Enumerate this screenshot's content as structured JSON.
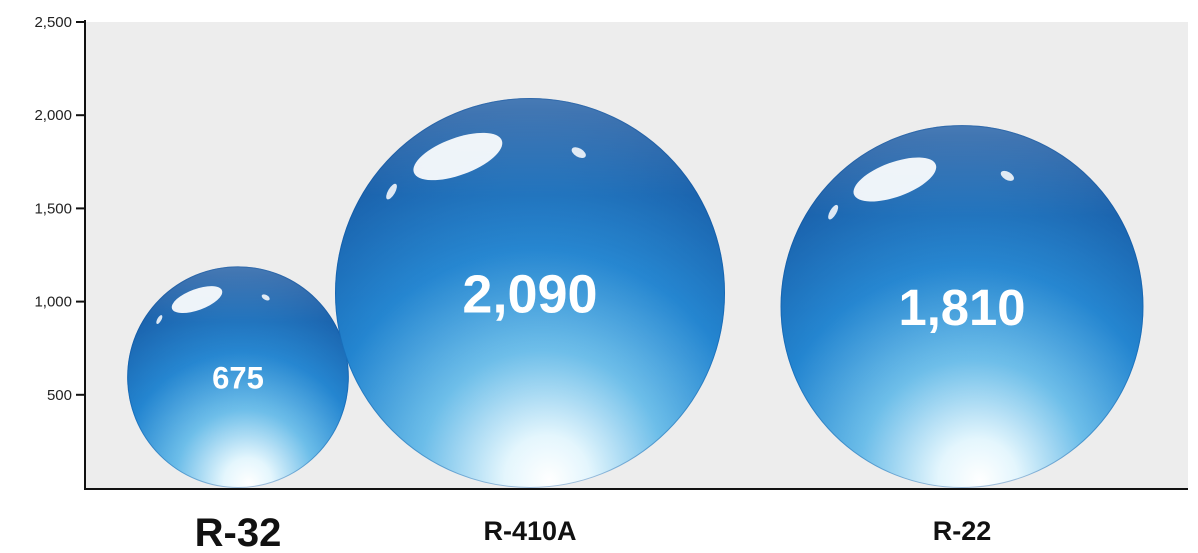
{
  "chart_data": {
    "type": "bubble",
    "categories": [
      "R-32",
      "R-410A",
      "R-22"
    ],
    "values": [
      675,
      2090,
      1810
    ],
    "value_labels": [
      "675",
      "2,090",
      "1,810"
    ],
    "y_ticks": [
      500,
      1000,
      1500,
      2000,
      2500
    ],
    "y_tick_labels": [
      "500",
      "1,000",
      "1,500",
      "2,000",
      "2,500"
    ],
    "ylim": [
      0,
      2500
    ],
    "highlight_category": "R-32",
    "grid": false,
    "colors": {
      "plot_background": "#ededed",
      "bubble_dark": "#0a4e9c",
      "bubble_mid": "#1e82cf",
      "bubble_light": "#e4f6fd",
      "label": "#ffffff"
    }
  }
}
